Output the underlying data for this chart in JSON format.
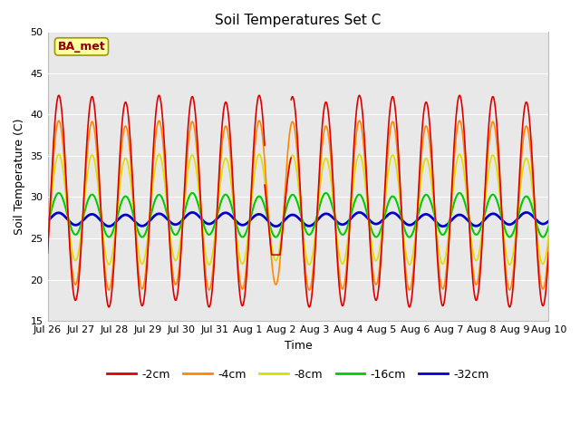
{
  "title": "Soil Temperatures Set C",
  "xlabel": "Time",
  "ylabel": "Soil Temperature (C)",
  "ylim": [
    15,
    50
  ],
  "xlim": [
    0,
    360
  ],
  "annotation": "BA_met",
  "background_color": "#e8e8e8",
  "series": {
    "-2cm": {
      "color": "#dd0000",
      "linewidth": 1.2
    },
    "-4cm": {
      "color": "#ff8800",
      "linewidth": 1.2
    },
    "-8cm": {
      "color": "#dddd00",
      "linewidth": 1.2
    },
    "-16cm": {
      "color": "#00cc00",
      "linewidth": 1.5
    },
    "-32cm": {
      "color": "#0000cc",
      "linewidth": 2.0
    }
  },
  "xtick_labels": [
    "Jul 26",
    "Jul 27",
    "Jul 28",
    "Jul 29",
    "Jul 30",
    "Jul 31",
    "Aug 1",
    "Aug 2",
    "Aug 3",
    "Aug 4",
    "Aug 5",
    "Aug 6",
    "Aug 7",
    "Aug 8",
    "Aug 9",
    "Aug 10"
  ],
  "xtick_positions": [
    0,
    24,
    48,
    72,
    96,
    120,
    144,
    168,
    192,
    216,
    240,
    264,
    288,
    312,
    336,
    360
  ]
}
